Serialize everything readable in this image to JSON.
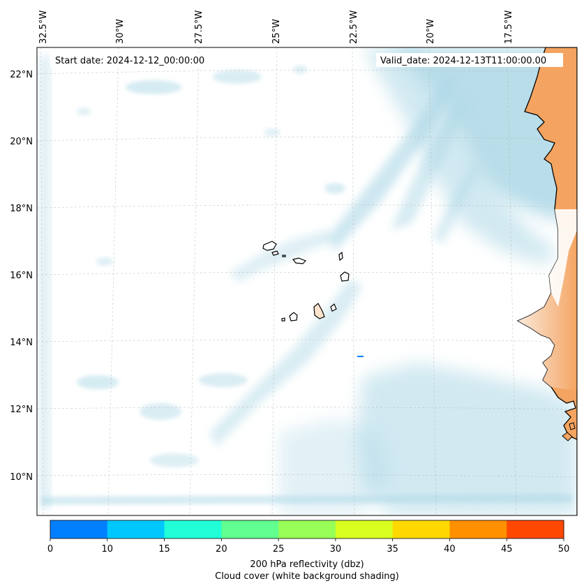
{
  "map": {
    "start_date_label": "Start date: 2024-12-12_00:00:00",
    "valid_date_label": "Valid_date: 2024-12-13T11:00:00.00",
    "longitude_labels": [
      "32.5°W",
      "30°W",
      "27.5°W",
      "25°W",
      "22.5°W",
      "20°W",
      "17.5°W"
    ],
    "latitude_labels": [
      "22°N",
      "20°N",
      "18°N",
      "16°N",
      "14°N",
      "12°N",
      "10°N"
    ],
    "land_color": "#f4a460",
    "cloud_color": "#add8e6",
    "coastline_color": "#000000",
    "gridlines": true
  },
  "colorbar": {
    "ticks": [
      "0",
      "10",
      "15",
      "20",
      "25",
      "30",
      "35",
      "40",
      "45",
      "50"
    ],
    "colors": [
      "#0080ff",
      "#00c8ff",
      "#20ffd8",
      "#60ff90",
      "#98ff58",
      "#d8ff20",
      "#ffd800",
      "#ff9000",
      "#ff4800"
    ],
    "label_line1": "200 hPa reflectivity (dbz)",
    "label_line2": "Cloud cover (white background shading)"
  }
}
